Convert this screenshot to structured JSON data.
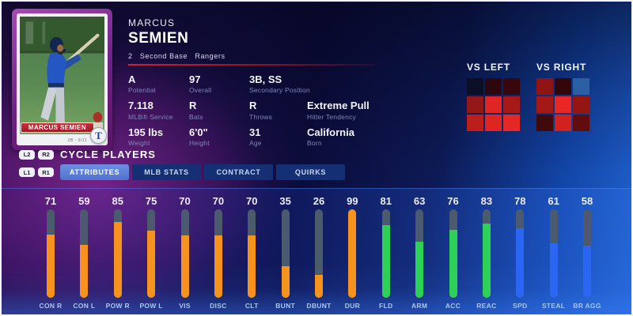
{
  "player_card": {
    "banner_name": "MARCUS SEMIEN",
    "card_note": "2B - 9/11",
    "team_logo_letter": "T"
  },
  "header": {
    "first_name": "MARCUS",
    "last_name": "SEMIEN",
    "subtitle": "2   Second Base   Rangers"
  },
  "bio": {
    "rows": [
      [
        {
          "value": "A",
          "label": "Potential"
        },
        {
          "value": "97",
          "label": "Overall"
        },
        {
          "value": "3B, SS",
          "label": "Secondary Position"
        }
      ],
      [
        {
          "value": "7.118",
          "label": "MLB® Service"
        },
        {
          "value": "R",
          "label": "Bats"
        },
        {
          "value": "R",
          "label": "Throws"
        },
        {
          "value": "Extreme Pull",
          "label": "Hitter Tendency"
        }
      ],
      [
        {
          "value": "195 lbs",
          "label": "Weight"
        },
        {
          "value": "6'0\"",
          "label": "Height"
        },
        {
          "value": "31",
          "label": "Age"
        },
        {
          "value": "California",
          "label": "Born"
        }
      ]
    ]
  },
  "heatmaps": [
    {
      "title": "VS LEFT",
      "cells": [
        "#0b0f26",
        "#2e070d",
        "#36080d",
        "#94171a",
        "#e02522",
        "#a51a17",
        "#bc1f1b",
        "#df2521",
        "#e42823"
      ]
    },
    {
      "title": "VS RIGHT",
      "cells": [
        "#8f1513",
        "#330609",
        "#2b5fa3",
        "#a41815",
        "#ea2724",
        "#941512",
        "#400a0b",
        "#d2221e",
        "#610d0d"
      ]
    }
  ],
  "controls": {
    "cycle_label": "CYCLE PLAYERS",
    "shoulder_badges_top": [
      "L2",
      "R2"
    ],
    "shoulder_badges_bottom": [
      "L1",
      "R1"
    ],
    "tabs": [
      {
        "label": "ATTRIBUTES",
        "selected": true
      },
      {
        "label": "MLB STATS",
        "selected": false
      },
      {
        "label": "CONTRACT",
        "selected": false
      },
      {
        "label": "QUIRKS",
        "selected": false
      }
    ]
  },
  "chart_data": {
    "type": "bar",
    "categories": [
      "CON R",
      "CON L",
      "POW R",
      "POW L",
      "VIS",
      "DISC",
      "CLT",
      "BUNT",
      "DBUNT",
      "DUR",
      "FLD",
      "ARM",
      "ACC",
      "REAC",
      "SPD",
      "STEAL",
      "BR AGG"
    ],
    "values": [
      71,
      59,
      85,
      75,
      70,
      70,
      70,
      35,
      26,
      99,
      81,
      63,
      76,
      83,
      78,
      61,
      58
    ],
    "ylim": [
      0,
      99
    ],
    "groups": [
      "batting",
      "batting",
      "batting",
      "batting",
      "batting",
      "batting",
      "batting",
      "batting",
      "batting",
      "batting",
      "fielding",
      "fielding",
      "fielding",
      "fielding",
      "running",
      "running",
      "running"
    ],
    "group_colors": {
      "batting": "#f6921e",
      "fielding": "#2ed058",
      "running": "#2b66f2"
    },
    "track_color": "#4c5a6e"
  },
  "colors": {
    "accent_selected_tab": "#5d80d8",
    "tab_background": "#142f74",
    "rule_red": "#c41e3a"
  }
}
